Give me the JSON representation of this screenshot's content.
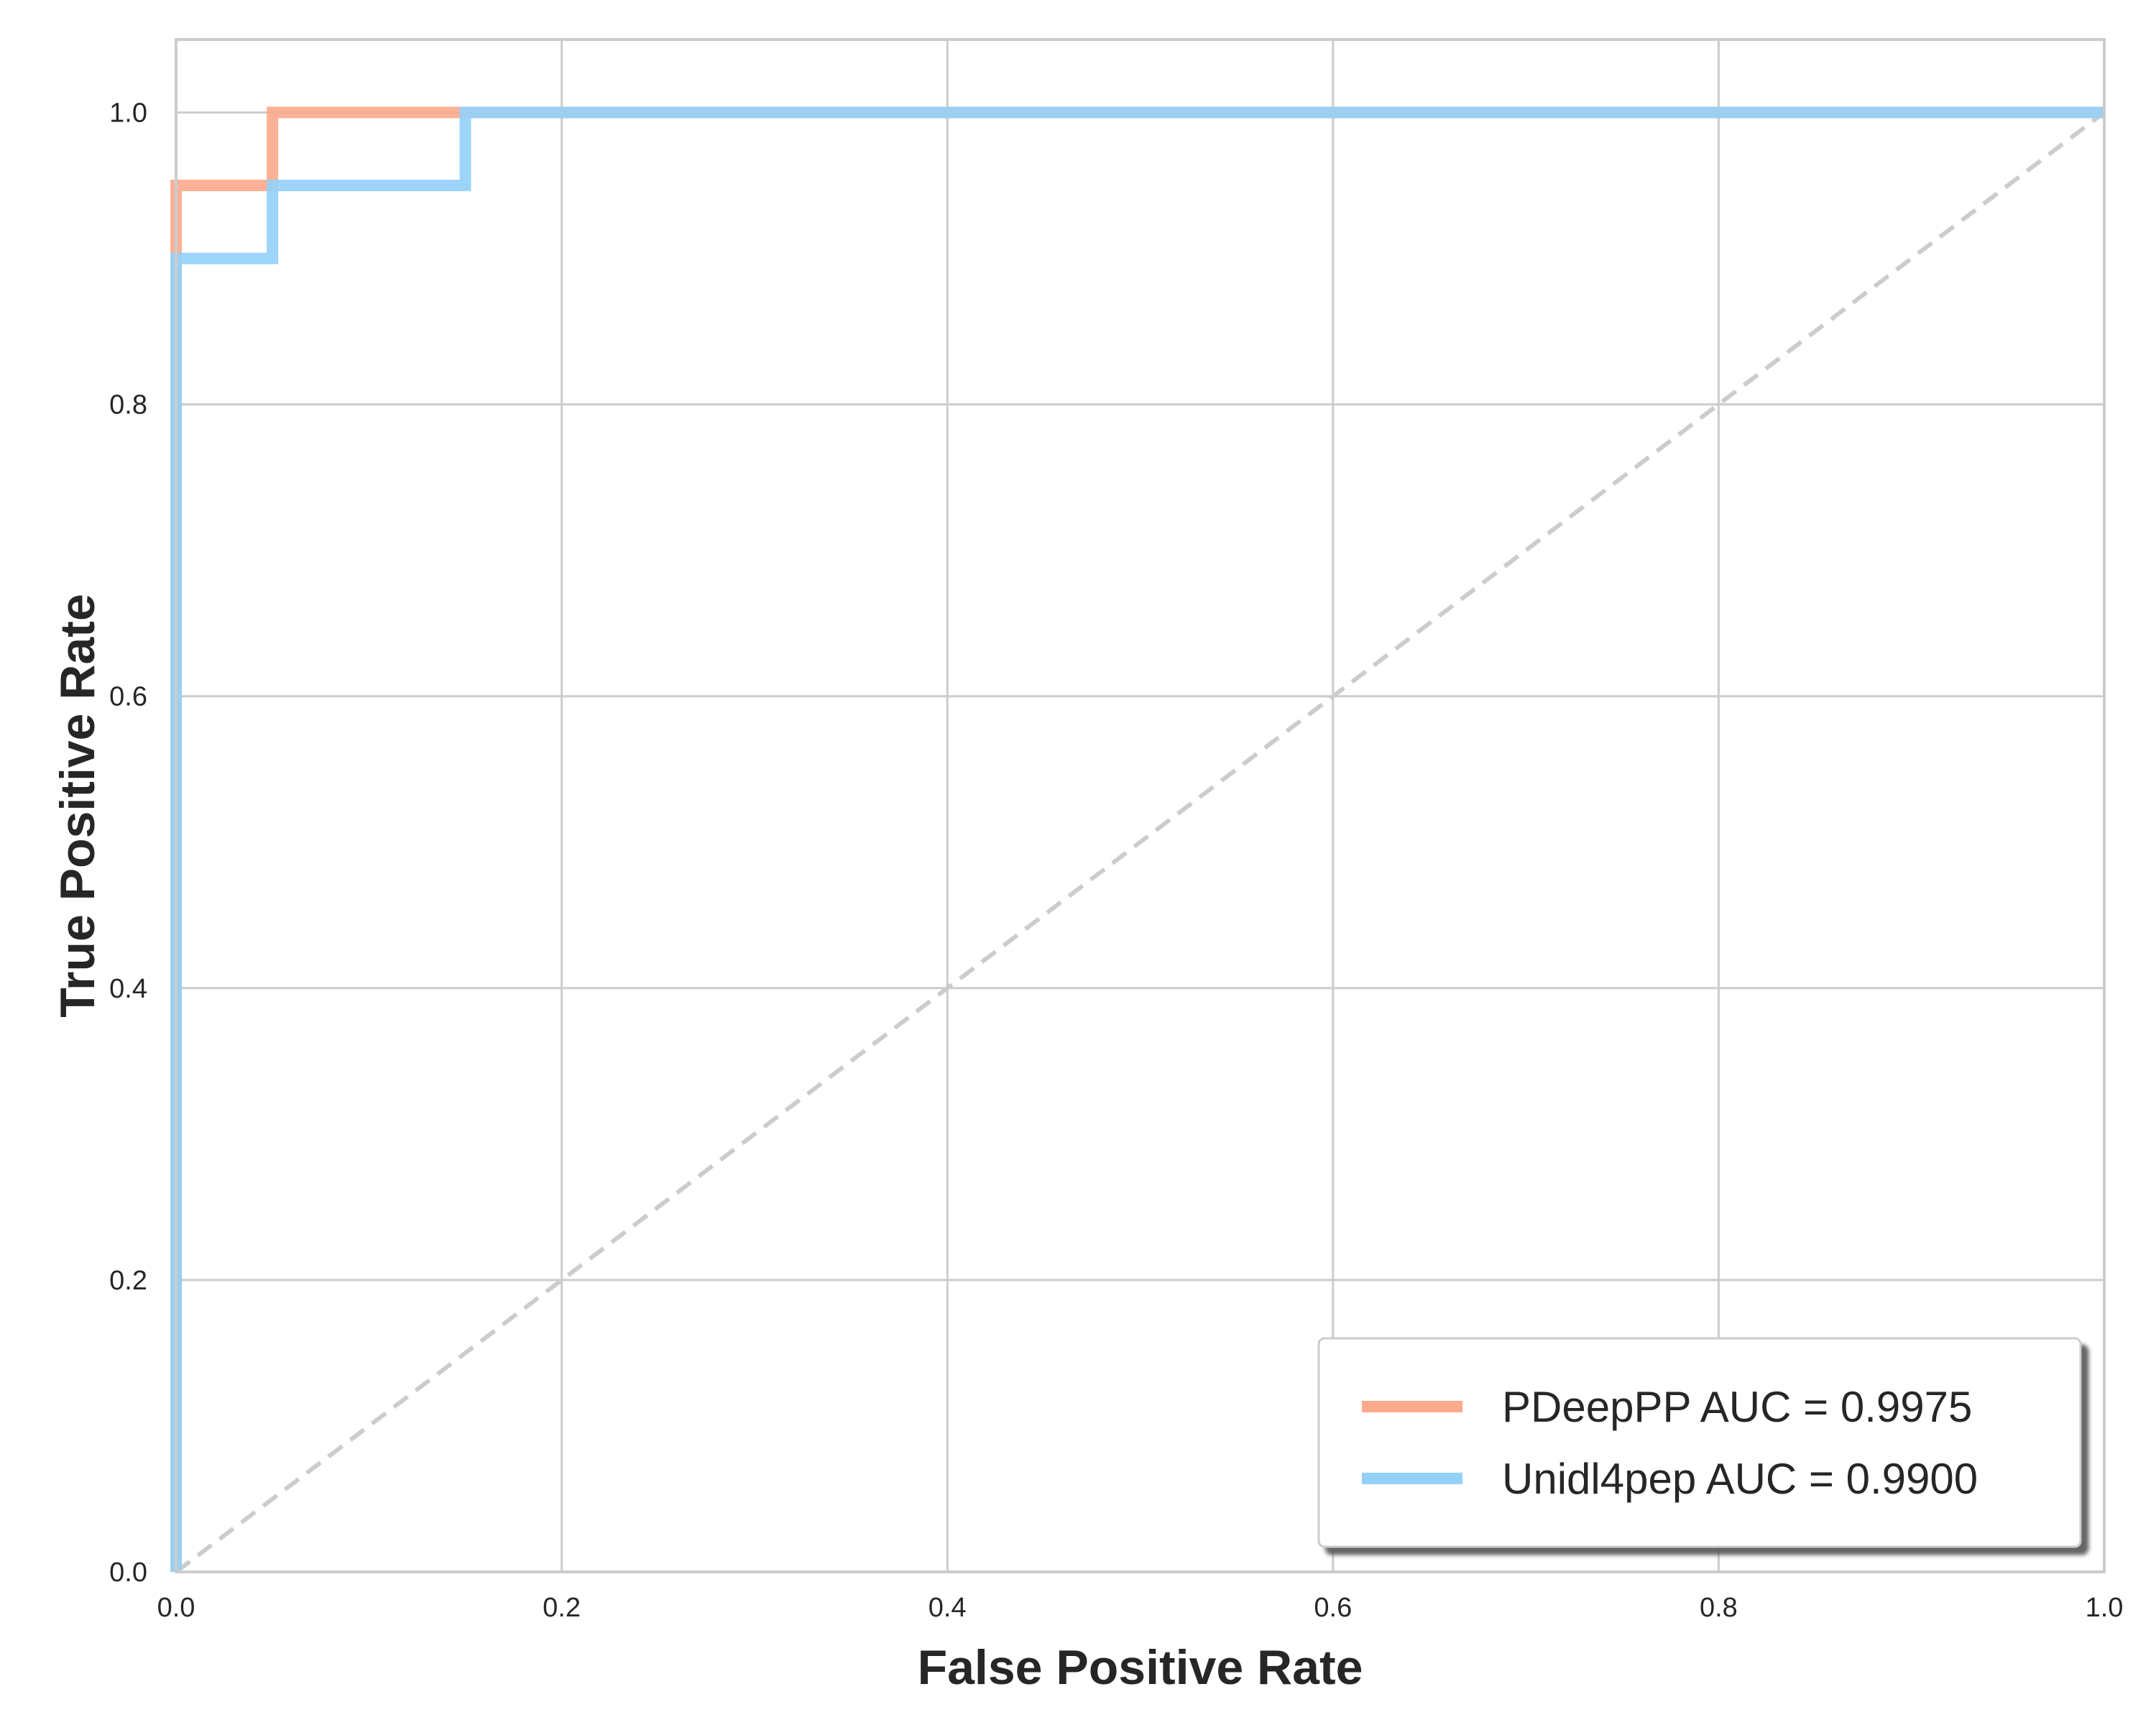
{
  "chart_data": {
    "type": "line",
    "xlabel": "False Positive Rate",
    "ylabel": "True Positive Rate",
    "xlim": [
      0.0,
      1.0
    ],
    "ylim": [
      0.0,
      1.05
    ],
    "xticks": [
      "0.0",
      "0.2",
      "0.4",
      "0.6",
      "0.8",
      "1.0"
    ],
    "yticks": [
      "0.0",
      "0.2",
      "0.4",
      "0.6",
      "0.8",
      "1.0"
    ],
    "grid": true,
    "legend_position": "lower-right",
    "diagonal": {
      "x": [
        0.0,
        1.0
      ],
      "y": [
        0.0,
        1.0
      ],
      "color": "#cccccc",
      "style": "dashed"
    },
    "series": [
      {
        "name": "PDeepPP AUC = 0.9975",
        "color": "#fbaa8c",
        "x": [
          0.0,
          0.0,
          0.05,
          0.05,
          0.15,
          1.0
        ],
        "y": [
          0.0,
          0.95,
          0.95,
          1.0,
          1.0,
          1.0
        ]
      },
      {
        "name": "Unidl4pep AUC = 0.9900",
        "color": "#94d1f8",
        "x": [
          0.0,
          0.0,
          0.05,
          0.05,
          0.15,
          0.15,
          1.0
        ],
        "y": [
          0.0,
          0.9,
          0.9,
          0.95,
          0.95,
          1.0,
          1.0
        ]
      }
    ]
  }
}
